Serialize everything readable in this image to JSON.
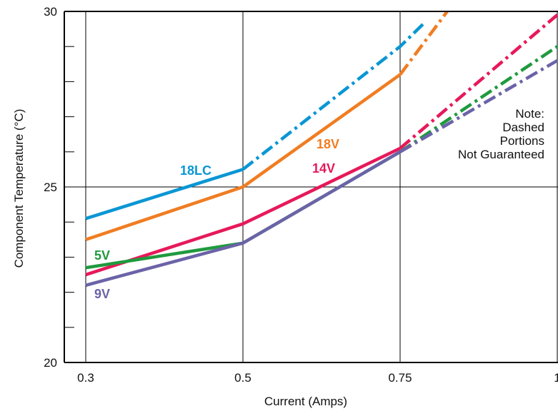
{
  "chart_data": {
    "type": "line",
    "xlabel": "Current (Amps)",
    "ylabel": "Component Temperature (°C)",
    "x_ticks": [
      "0.3",
      "0.5",
      "0.75",
      "1"
    ],
    "x_tick_values": [
      0.3,
      0.5,
      0.75,
      1.0
    ],
    "y_ticks": [
      "20",
      "25",
      "30"
    ],
    "y_tick_values": [
      20,
      25,
      30
    ],
    "ylim": [
      20,
      30
    ],
    "y_minor_step": 1,
    "grid": true,
    "note": [
      "Note:",
      "Dashed",
      "Portions",
      "Not Guaranteed"
    ],
    "series": [
      {
        "name": "18LC",
        "color": "#0a96d4",
        "solid": [
          [
            0.3,
            24.1
          ],
          [
            0.5,
            25.5
          ]
        ],
        "dashed": [
          [
            0.5,
            25.5
          ],
          [
            0.75,
            29.0
          ],
          [
            0.79,
            29.7
          ]
        ]
      },
      {
        "name": "18V",
        "color": "#f07d22",
        "solid": [
          [
            0.3,
            23.5
          ],
          [
            0.5,
            25.0
          ],
          [
            0.75,
            28.2
          ]
        ],
        "dashed": [
          [
            0.75,
            28.2
          ],
          [
            0.825,
            30.0
          ]
        ]
      },
      {
        "name": "14V",
        "color": "#e6195a",
        "solid": [
          [
            0.3,
            22.5
          ],
          [
            0.5,
            23.95
          ],
          [
            0.75,
            26.1
          ]
        ],
        "dashed": [
          [
            0.75,
            26.1
          ],
          [
            1.0,
            29.9
          ]
        ]
      },
      {
        "name": "5V",
        "color": "#1f9a3d",
        "solid": [
          [
            0.3,
            22.7
          ],
          [
            0.5,
            23.4
          ],
          [
            0.75,
            26.0
          ]
        ],
        "dashed": [
          [
            0.75,
            26.0
          ],
          [
            1.0,
            29.0
          ]
        ]
      },
      {
        "name": "9V",
        "color": "#6b63a8",
        "solid": [
          [
            0.3,
            22.2
          ],
          [
            0.5,
            23.4
          ],
          [
            0.75,
            26.0
          ]
        ],
        "dashed": [
          [
            0.75,
            26.0
          ],
          [
            1.0,
            28.6
          ]
        ]
      }
    ]
  }
}
